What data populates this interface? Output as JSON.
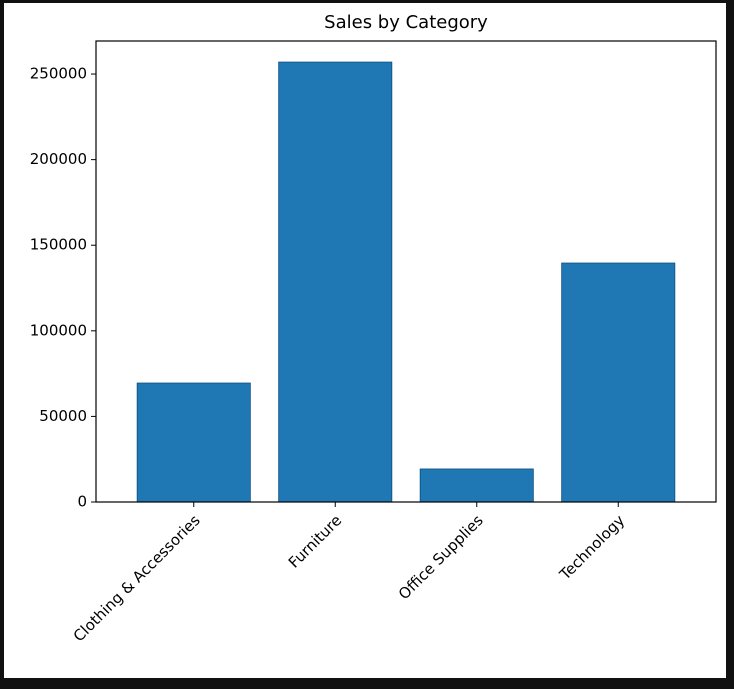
{
  "chart_data": {
    "type": "bar",
    "title": "Sales by Category",
    "categories": [
      "Clothing & Accessories",
      "Furniture",
      "Office Supplies",
      "Technology"
    ],
    "values": [
      69500,
      257000,
      19300,
      139600
    ],
    "color": "#1f77b4",
    "ylim": [
      0,
      269300
    ],
    "yticks": [
      0,
      50000,
      100000,
      150000,
      200000,
      250000
    ],
    "grid": false
  }
}
